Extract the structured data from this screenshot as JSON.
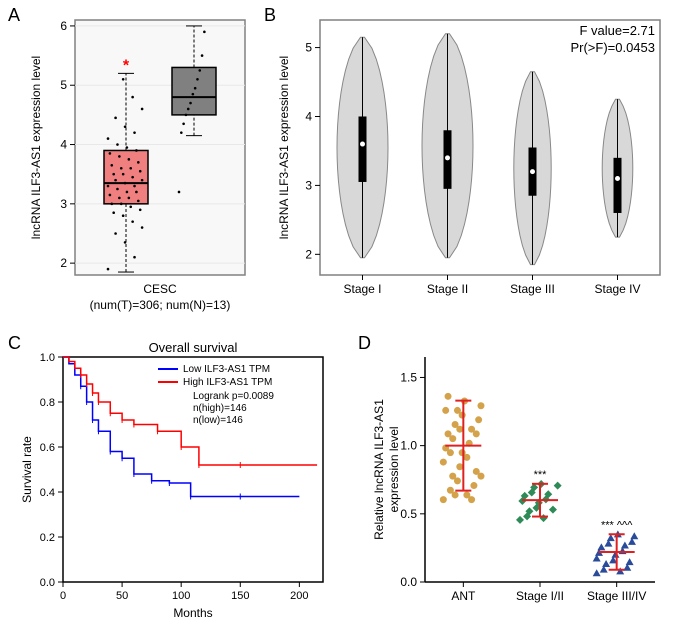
{
  "panelA": {
    "label": "A",
    "ylabel": "lncRNA ILF3-AS1 expression level",
    "xlabel_line1": "CESC",
    "xlabel_line2": "(num(T)=306; num(N)=13)",
    "yticks": [
      2,
      3,
      4,
      5,
      6
    ],
    "box1": {
      "color": "#f08080",
      "median": 3.35,
      "q1": 3.0,
      "q3": 3.9,
      "whisker_low": 1.85,
      "whisker_high": 5.2
    },
    "box2": {
      "color": "#808080",
      "median": 4.8,
      "q1": 4.5,
      "q3": 5.3,
      "whisker_low": 4.15,
      "whisker_high": 6.0
    },
    "asterisk": "*",
    "asterisk_color": "#ff0000",
    "plot_bg": "#f8f8f8",
    "frame_color": "#808080",
    "gridline_color": "#e8e8e8"
  },
  "panelB": {
    "label": "B",
    "ylabel": "lncRNA ILF3-AS1 expression level",
    "stat1": "F value=2.71",
    "stat2": "Pr(>F)=0.0453",
    "yticks": [
      2,
      3,
      4,
      5
    ],
    "categories": [
      "Stage I",
      "Stage II",
      "Stage III",
      "Stage IV"
    ],
    "violin_color": "#d8d8d8",
    "violin_stroke": "#888888",
    "median_color": "#ffffff",
    "box_color": "#000000",
    "frame_color": "#808080",
    "violins": [
      {
        "median": 3.6,
        "q1": 3.05,
        "q3": 4.0,
        "min": 1.95,
        "max": 5.15,
        "width": 0.75
      },
      {
        "median": 3.4,
        "q1": 2.95,
        "q3": 3.8,
        "min": 1.95,
        "max": 5.2,
        "width": 0.75
      },
      {
        "median": 3.2,
        "q1": 2.85,
        "q3": 3.55,
        "min": 1.85,
        "max": 4.65,
        "width": 0.55
      },
      {
        "median": 3.1,
        "q1": 2.6,
        "q3": 3.4,
        "min": 2.25,
        "max": 4.25,
        "width": 0.45
      }
    ]
  },
  "panelC": {
    "label": "C",
    "title": "Overall survival",
    "ylabel": "Survival rate",
    "xlabel": "Months",
    "yticks": [
      "0.0",
      "0.2",
      "0.4",
      "0.6",
      "0.8",
      "1.0"
    ],
    "xticks": [
      0,
      50,
      100,
      150,
      200
    ],
    "legend": [
      "Low ILF3-AS1 TPM",
      "High ILF3-AS1 TPM"
    ],
    "legend_colors": [
      "#0000ff",
      "#ff0000"
    ],
    "stats": [
      "Logrank p=0.0089",
      "n(high)=146",
      "n(low)=146"
    ],
    "frame_color": "#000000",
    "low_curve": [
      [
        0,
        1.0
      ],
      [
        5,
        0.97
      ],
      [
        10,
        0.92
      ],
      [
        15,
        0.87
      ],
      [
        20,
        0.8
      ],
      [
        25,
        0.72
      ],
      [
        30,
        0.67
      ],
      [
        40,
        0.58
      ],
      [
        50,
        0.55
      ],
      [
        60,
        0.48
      ],
      [
        75,
        0.45
      ],
      [
        90,
        0.44
      ],
      [
        108,
        0.38
      ],
      [
        150,
        0.38
      ],
      [
        200,
        0.38
      ]
    ],
    "high_curve": [
      [
        0,
        1.0
      ],
      [
        5,
        0.98
      ],
      [
        10,
        0.95
      ],
      [
        15,
        0.92
      ],
      [
        20,
        0.88
      ],
      [
        25,
        0.84
      ],
      [
        30,
        0.8
      ],
      [
        40,
        0.75
      ],
      [
        50,
        0.72
      ],
      [
        60,
        0.7
      ],
      [
        80,
        0.67
      ],
      [
        100,
        0.6
      ],
      [
        115,
        0.52
      ],
      [
        150,
        0.52
      ],
      [
        215,
        0.52
      ]
    ]
  },
  "panelD": {
    "label": "D",
    "ylabel": "Relative lncRNA ILF3-AS1",
    "ylabel2": "expression level",
    "yticks": [
      "0.0",
      "0.5",
      "1.0",
      "1.5"
    ],
    "categories": [
      "ANT",
      "Stage I/II",
      "Stage III/IV"
    ],
    "frame_color": "#000000",
    "groups": [
      {
        "mean": 1.0,
        "sd": 0.33,
        "color": "#d4a24a",
        "marker": "circle",
        "n": 30,
        "sig": ""
      },
      {
        "mean": 0.6,
        "sd": 0.12,
        "color": "#2e8b57",
        "marker": "diamond",
        "n": 15,
        "sig": "***"
      },
      {
        "mean": 0.22,
        "sd": 0.13,
        "color": "#2a4a9a",
        "marker": "triangle",
        "n": 18,
        "sig": "*** ^^^"
      }
    ],
    "error_color": "#e02020"
  }
}
